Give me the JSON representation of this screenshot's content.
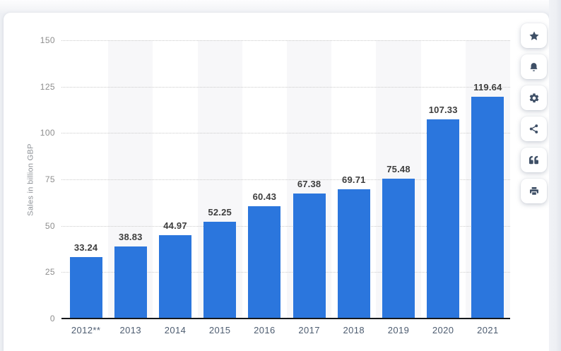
{
  "chart_data": {
    "type": "bar",
    "categories": [
      "2012**",
      "2013",
      "2014",
      "2015",
      "2016",
      "2017",
      "2018",
      "2019",
      "2020",
      "2021"
    ],
    "values": [
      33.24,
      38.83,
      44.97,
      52.25,
      60.43,
      67.38,
      69.71,
      75.48,
      107.33,
      119.64
    ],
    "value_labels": [
      "33.24",
      "38.83",
      "44.97",
      "52.25",
      "60.43",
      "67.38",
      "69.71",
      "75.48",
      "107.33",
      "119.64"
    ],
    "title": "",
    "xlabel": "",
    "ylabel": "Sales in billion GBP",
    "ylim": [
      0,
      150
    ],
    "yticks": [
      0,
      25,
      50,
      75,
      100,
      125,
      150
    ],
    "grid": "horizontal-dotted",
    "legend": "none",
    "bar_color": "#2b76dd",
    "band_color": "#f7f7f9",
    "value_label_color": "#3d3d3d",
    "x_label_color": "#4d5c70",
    "y_tick_color": "#8d8d8d",
    "alternating_bands_behind": [
      "2013",
      "2015",
      "2017",
      "2019",
      "2021"
    ]
  },
  "toolbar": {
    "icon_color": "#3e4f66",
    "buttons": [
      {
        "name": "favorite",
        "icon": "star-icon"
      },
      {
        "name": "notifications",
        "icon": "bell-icon"
      },
      {
        "name": "settings",
        "icon": "gear-icon"
      },
      {
        "name": "share",
        "icon": "share-icon"
      },
      {
        "name": "cite",
        "icon": "quote-icon"
      },
      {
        "name": "print",
        "icon": "printer-icon"
      }
    ]
  }
}
